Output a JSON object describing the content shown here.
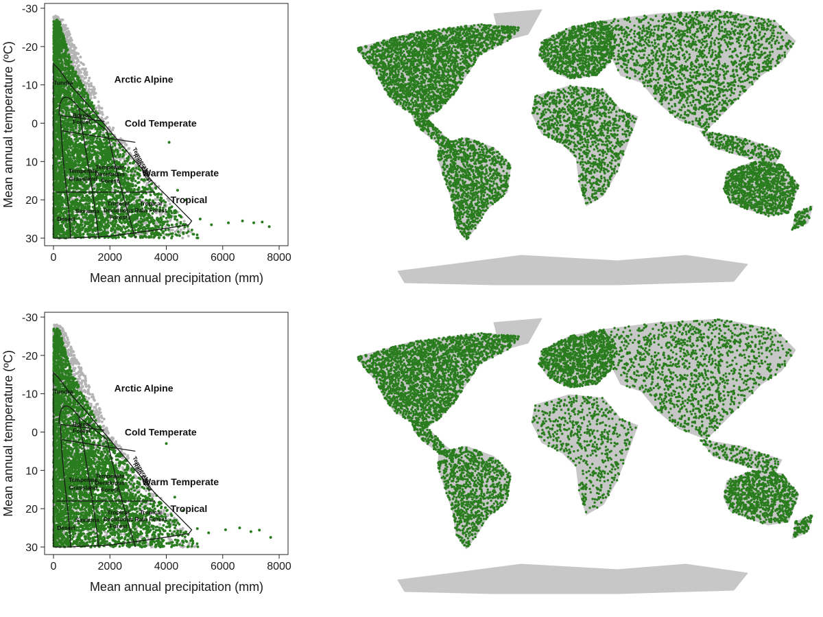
{
  "colors": {
    "present": "#2a7d1e",
    "absent": "#b4b4b4",
    "land": "#c7c7c7",
    "boundary": "#1a1a1a"
  },
  "panels": [
    {
      "id": "top",
      "chart_data": {
        "type": "scatter",
        "xlabel": "Mean annual precipitation (mm)",
        "ylabel": "Mean annual temperature (ºC)",
        "xlim": [
          0,
          8000
        ],
        "ylim": [
          30,
          -30
        ],
        "xticks": [
          "0",
          "2000",
          "4000",
          "6000",
          "8000"
        ],
        "yticks": [
          "-30",
          "-20",
          "-10",
          "0",
          "10",
          "20",
          "30"
        ],
        "zones": [
          "Arctic Alpine",
          "Cold Temperate",
          "Warm Temperate",
          "Tropical"
        ],
        "biomes": [
          "Tundra",
          "Boreal",
          "Forest",
          "Temperate",
          "Grassland",
          "Temperate",
          "Deciduous",
          "Forest",
          "Temperate",
          "Rain Forest",
          "Desert",
          "Savanna",
          "Tropical",
          "Deciduous",
          "Forest",
          "Tropical",
          "Rain Forest"
        ],
        "outlier_points": [
          [
            6200,
            26
          ],
          [
            6700,
            25.5
          ],
          [
            7100,
            26
          ],
          [
            7400,
            25.8
          ],
          [
            7650,
            27
          ],
          [
            5600,
            26.5
          ],
          [
            5200,
            25
          ],
          [
            4700,
            20
          ],
          [
            4400,
            17.5
          ],
          [
            4100,
            5
          ]
        ],
        "grid": false,
        "legend": "none"
      },
      "map": {
        "type": "world-occurrence-map"
      }
    },
    {
      "id": "bottom",
      "chart_data": {
        "type": "scatter",
        "xlabel": "Mean annual precipitation (mm)",
        "ylabel": "Mean annual temperature (ºC)",
        "xlim": [
          0,
          8000
        ],
        "ylim": [
          30,
          -30
        ],
        "xticks": [
          "0",
          "2000",
          "4000",
          "6000",
          "8000"
        ],
        "yticks": [
          "-30",
          "-20",
          "-10",
          "0",
          "10",
          "20",
          "30"
        ],
        "zones": [
          "Arctic Alpine",
          "Cold Temperate",
          "Warm Temperate",
          "Tropical"
        ],
        "biomes": [
          "Tundra",
          "Boreal",
          "Forest",
          "Temperate",
          "Grassland",
          "Temperate",
          "Deciduous",
          "Forest",
          "Temperate",
          "Rain Forest",
          "Desert",
          "Savanna",
          "Tropical",
          "Deciduous",
          "Forest",
          "Tropical",
          "Rain Forest"
        ],
        "outlier_points": [
          [
            6100,
            25.5
          ],
          [
            6600,
            25
          ],
          [
            7000,
            26
          ],
          [
            7300,
            25.6
          ],
          [
            7700,
            27.5
          ],
          [
            5500,
            26.3
          ],
          [
            5100,
            25.2
          ],
          [
            4600,
            20.5
          ],
          [
            4300,
            17
          ],
          [
            4000,
            3
          ]
        ],
        "grid": false,
        "legend": "none"
      },
      "map": {
        "type": "world-occurrence-map"
      }
    }
  ]
}
